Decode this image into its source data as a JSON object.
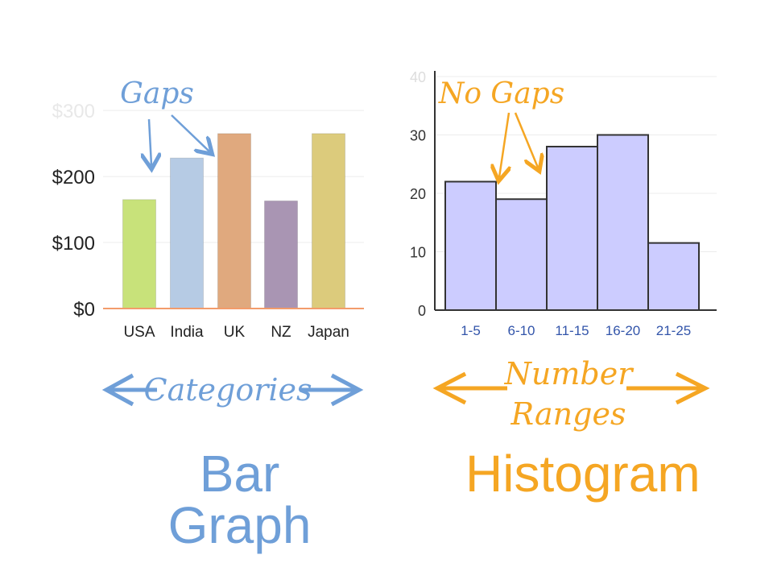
{
  "colors": {
    "blue_accent": "#6f9fd8",
    "orange_accent": "#f5a623",
    "bar_axis": "#f39c6b",
    "hist_fill": "#ccccff",
    "hist_tick": "#3355aa"
  },
  "bar_graph": {
    "title": "Bar Graph",
    "annotation": "Gaps",
    "axis_caption": "Categories"
  },
  "histogram": {
    "title": "Histogram",
    "annotation": "No Gaps",
    "axis_caption_line1": "Number",
    "axis_caption_line2": "Ranges"
  },
  "chart_data": [
    {
      "type": "bar",
      "categories": [
        "USA",
        "India",
        "UK",
        "NZ",
        "Japan"
      ],
      "values": [
        165,
        228,
        265,
        163,
        265
      ],
      "colors": [
        "#c8e27a",
        "#b6cbe4",
        "#e0a97e",
        "#a995b3",
        "#dccb7c"
      ],
      "yticks": [
        0,
        100,
        200,
        300
      ],
      "ytick_labels": [
        "$0",
        "$100",
        "$200",
        "$300"
      ],
      "ylim": [
        0,
        360
      ],
      "grid": true
    },
    {
      "type": "bar",
      "categories": [
        "1-5",
        "6-10",
        "11-15",
        "16-20",
        "21-25"
      ],
      "values": [
        22,
        19,
        28,
        30,
        11.5
      ],
      "yticks": [
        0,
        10,
        20,
        30,
        40
      ],
      "ytick_labels": [
        "0",
        "10",
        "20",
        "30",
        "40"
      ],
      "ylim": [
        0,
        40
      ],
      "grid": true
    }
  ]
}
